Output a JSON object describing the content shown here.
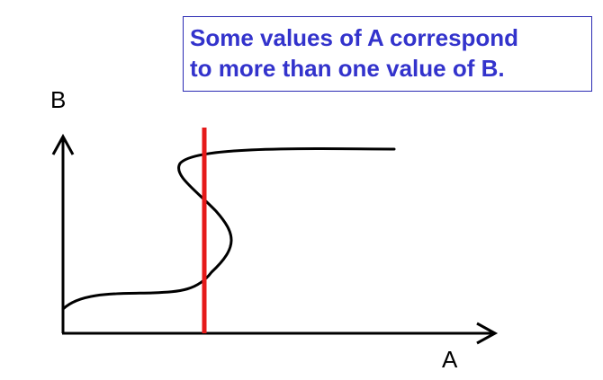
{
  "callout": {
    "line1": "Some values of A correspond",
    "line2": "to more than one value of B."
  },
  "axes": {
    "y_label": "B",
    "x_label": "A"
  },
  "colors": {
    "callout_text": "#3333CC",
    "callout_border": "#2B2BB3",
    "curve": "#000000",
    "vertical_line": "#E51A1A"
  }
}
